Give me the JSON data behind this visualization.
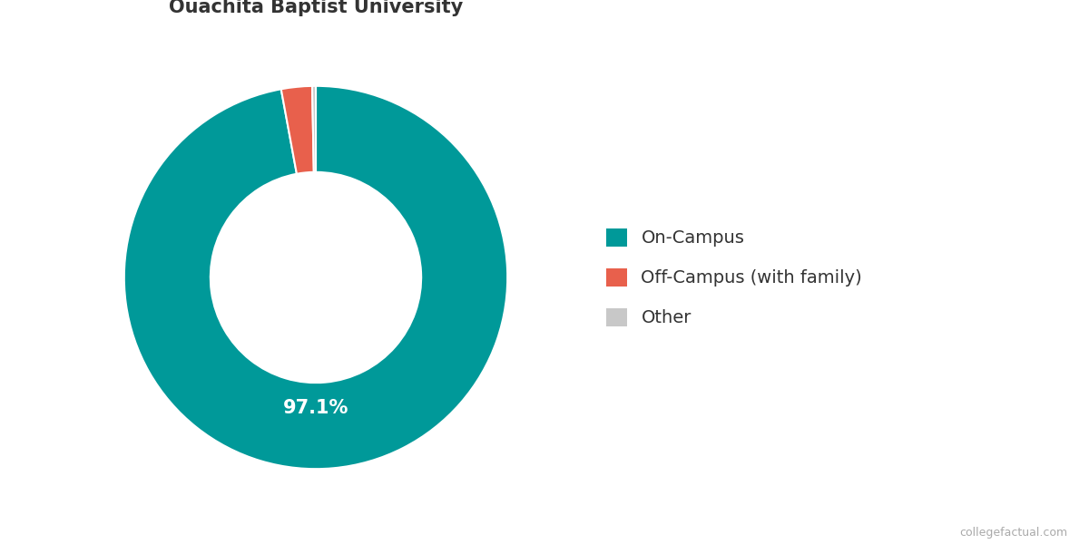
{
  "slices": [
    97.1,
    2.6,
    0.3
  ],
  "labels": [
    "On-Campus",
    "Off-Campus (with family)",
    "Other"
  ],
  "colors": [
    "#009999",
    "#E8604C",
    "#C8C8C8"
  ],
  "pct_label": "97.1%",
  "donut_width": 0.45,
  "start_angle": 90,
  "legend_fontsize": 14,
  "title_fontsize": 15,
  "background_color": "#ffffff",
  "watermark": "collegefactual.com"
}
